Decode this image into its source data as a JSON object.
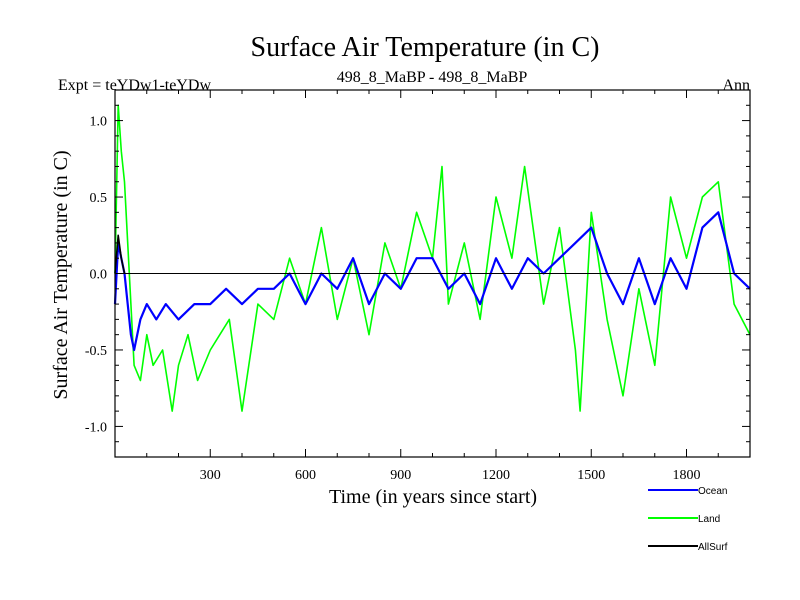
{
  "chart_data": {
    "type": "line",
    "title": "Surface Air Temperature (in C)",
    "subtitle_left": "Expt = teYDw1-teYDw",
    "subtitle_center": "498_8_MaBP - 498_8_MaBP",
    "subtitle_right": "Ann",
    "xlabel": "Time (in years since start)",
    "ylabel": "Surface Air Temperature (in C)",
    "xlim": [
      0,
      2000
    ],
    "ylim": [
      -1.2,
      1.2
    ],
    "xticks": [
      300,
      600,
      900,
      1200,
      1500,
      1800
    ],
    "xtick_labels": [
      "300",
      "600",
      "900",
      "1200",
      "1500",
      "1800"
    ],
    "yticks": [
      -1.0,
      -0.5,
      0.0,
      0.5,
      1.0
    ],
    "ytick_labels": [
      "-1.0",
      "-0.5",
      "0.0",
      "0.5",
      "1.0"
    ],
    "zero_line": 0.0,
    "legend_position": "bottom-right",
    "series": [
      {
        "name": "Land",
        "color": "#00ff00",
        "x": [
          0,
          10,
          20,
          30,
          40,
          50,
          60,
          80,
          100,
          120,
          150,
          180,
          200,
          230,
          260,
          300,
          330,
          360,
          400,
          450,
          500,
          550,
          600,
          650,
          700,
          750,
          800,
          850,
          900,
          950,
          1000,
          1030,
          1050,
          1100,
          1150,
          1200,
          1250,
          1290,
          1350,
          1400,
          1450,
          1465,
          1500,
          1550,
          1600,
          1650,
          1700,
          1750,
          1800,
          1850,
          1900,
          1950,
          2000
        ],
        "values": [
          0.0,
          1.1,
          0.8,
          0.6,
          0.2,
          -0.2,
          -0.6,
          -0.7,
          -0.4,
          -0.6,
          -0.5,
          -0.9,
          -0.6,
          -0.4,
          -0.7,
          -0.5,
          -0.4,
          -0.3,
          -0.9,
          -0.2,
          -0.3,
          0.1,
          -0.2,
          0.3,
          -0.3,
          0.1,
          -0.4,
          0.2,
          -0.1,
          0.4,
          0.1,
          0.7,
          -0.2,
          0.2,
          -0.3,
          0.5,
          0.1,
          0.7,
          -0.2,
          0.3,
          -0.5,
          -0.9,
          0.4,
          -0.3,
          -0.8,
          -0.1,
          -0.6,
          0.5,
          0.1,
          0.5,
          0.6,
          -0.2,
          -0.4
        ]
      },
      {
        "name": "Ocean",
        "color": "#0000ff",
        "x": [
          0,
          10,
          20,
          30,
          40,
          50,
          60,
          80,
          100,
          130,
          160,
          200,
          250,
          300,
          350,
          400,
          450,
          500,
          550,
          600,
          650,
          700,
          750,
          800,
          850,
          900,
          950,
          1000,
          1050,
          1100,
          1150,
          1200,
          1250,
          1300,
          1350,
          1400,
          1450,
          1500,
          1550,
          1600,
          1650,
          1700,
          1750,
          1800,
          1850,
          1900,
          1950,
          2000
        ],
        "values": [
          -0.2,
          0.2,
          0.1,
          0.0,
          -0.2,
          -0.4,
          -0.5,
          -0.3,
          -0.2,
          -0.3,
          -0.2,
          -0.3,
          -0.2,
          -0.2,
          -0.1,
          -0.2,
          -0.1,
          -0.1,
          0.0,
          -0.2,
          0.0,
          -0.1,
          0.1,
          -0.2,
          0.0,
          -0.1,
          0.1,
          0.1,
          -0.1,
          0.0,
          -0.2,
          0.1,
          -0.1,
          0.1,
          0.0,
          0.1,
          0.2,
          0.3,
          0.0,
          -0.2,
          0.1,
          -0.2,
          0.1,
          -0.1,
          0.3,
          0.4,
          0.0,
          -0.1
        ]
      },
      {
        "name": "AllSurf",
        "color": "#000000",
        "x": [
          0,
          10,
          20,
          30
        ],
        "values": [
          0.0,
          0.25,
          0.1,
          0.0
        ]
      }
    ]
  }
}
